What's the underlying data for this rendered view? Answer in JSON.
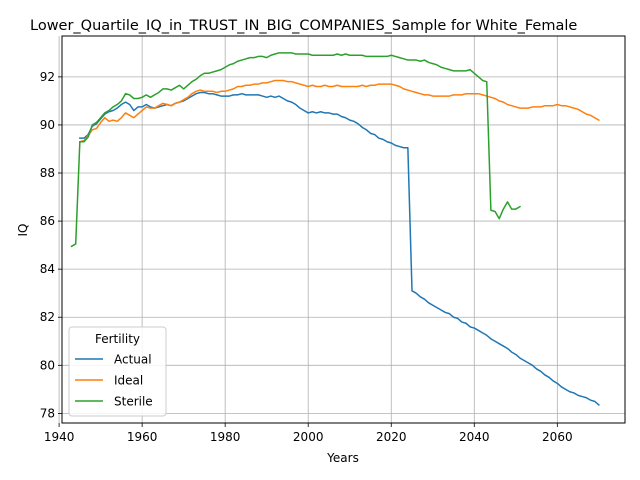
{
  "chart_data": {
    "type": "line",
    "title": "Lower_Quartile_IQ_in_TRUST_IN_BIG_COMPANIES_Sample for White_Female",
    "xlabel": "Years",
    "ylabel": "IQ",
    "xlim": [
      1940.7,
      2076.3
    ],
    "ylim": [
      77.6,
      93.7
    ],
    "xticks": [
      1940,
      1960,
      1980,
      2000,
      2020,
      2040,
      2060
    ],
    "yticks": [
      78,
      80,
      82,
      84,
      86,
      88,
      90,
      92
    ],
    "xtick_labels": [
      "1940",
      "1960",
      "1980",
      "2000",
      "2020",
      "2040",
      "2060"
    ],
    "ytick_labels": [
      "78",
      "80",
      "82",
      "84",
      "86",
      "88",
      "90",
      "92"
    ],
    "grid": true,
    "legend": {
      "title": "Fertility",
      "placement": "lower-left"
    },
    "series": [
      {
        "name": "Actual",
        "color": "#1f77b4",
        "x": [
          1945,
          1946,
          1947,
          1948,
          1949,
          1950,
          1951,
          1952,
          1953,
          1954,
          1955,
          1956,
          1957,
          1958,
          1959,
          1960,
          1961,
          1962,
          1963,
          1964,
          1965,
          1966,
          1967,
          1968,
          1969,
          1970,
          1971,
          1972,
          1973,
          1974,
          1975,
          1976,
          1977,
          1978,
          1979,
          1980,
          1981,
          1982,
          1983,
          1984,
          1985,
          1986,
          1987,
          1988,
          1989,
          1990,
          1991,
          1992,
          1993,
          1994,
          1995,
          1996,
          1997,
          1998,
          1999,
          2000,
          2001,
          2002,
          2003,
          2004,
          2005,
          2006,
          2007,
          2008,
          2009,
          2010,
          2011,
          2012,
          2013,
          2014,
          2015,
          2016,
          2017,
          2018,
          2019,
          2020,
          2021,
          2022,
          2023,
          2024,
          2025,
          2026,
          2027,
          2028,
          2029,
          2030,
          2031,
          2032,
          2033,
          2034,
          2035,
          2036,
          2037,
          2038,
          2039,
          2040,
          2041,
          2042,
          2043,
          2044,
          2045,
          2046,
          2047,
          2048,
          2049,
          2050,
          2051,
          2052,
          2053,
          2054,
          2055,
          2056,
          2057,
          2058,
          2059,
          2060,
          2061,
          2062,
          2063,
          2064,
          2065,
          2066,
          2067,
          2068,
          2069,
          2070
        ],
        "values": [
          89.45,
          89.45,
          89.6,
          89.95,
          90.05,
          90.25,
          90.45,
          90.55,
          90.6,
          90.7,
          90.85,
          90.95,
          90.85,
          90.6,
          90.75,
          90.75,
          90.85,
          90.75,
          90.7,
          90.75,
          90.8,
          90.85,
          90.8,
          90.9,
          90.95,
          91.0,
          91.1,
          91.2,
          91.3,
          91.35,
          91.35,
          91.3,
          91.3,
          91.25,
          91.2,
          91.2,
          91.2,
          91.25,
          91.25,
          91.3,
          91.25,
          91.25,
          91.25,
          91.25,
          91.2,
          91.15,
          91.2,
          91.15,
          91.2,
          91.1,
          91.0,
          90.95,
          90.85,
          90.7,
          90.6,
          90.5,
          90.55,
          90.5,
          90.55,
          90.5,
          90.5,
          90.45,
          90.45,
          90.35,
          90.3,
          90.2,
          90.15,
          90.05,
          89.9,
          89.8,
          89.65,
          89.6,
          89.45,
          89.4,
          89.3,
          89.25,
          89.15,
          89.1,
          89.05,
          89.05,
          83.1,
          83.0,
          82.85,
          82.75,
          82.6,
          82.5,
          82.4,
          82.3,
          82.2,
          82.15,
          82.0,
          81.95,
          81.8,
          81.75,
          81.6,
          81.55,
          81.45,
          81.35,
          81.25,
          81.1,
          81.0,
          80.9,
          80.8,
          80.7,
          80.55,
          80.45,
          80.3,
          80.2,
          80.1,
          80.0,
          79.85,
          79.75,
          79.6,
          79.5,
          79.35,
          79.25,
          79.1,
          79.0,
          78.9,
          78.85,
          78.75,
          78.7,
          78.65,
          78.55,
          78.5,
          78.35
        ]
      },
      {
        "name": "Ideal",
        "color": "#ff7f0e",
        "x": [
          1945,
          1946,
          1947,
          1948,
          1949,
          1950,
          1951,
          1952,
          1953,
          1954,
          1955,
          1956,
          1957,
          1958,
          1959,
          1960,
          1961,
          1962,
          1963,
          1964,
          1965,
          1966,
          1967,
          1968,
          1969,
          1970,
          1971,
          1972,
          1973,
          1974,
          1975,
          1976,
          1977,
          1978,
          1979,
          1980,
          1981,
          1982,
          1983,
          1984,
          1985,
          1986,
          1987,
          1988,
          1989,
          1990,
          1991,
          1992,
          1993,
          1994,
          1995,
          1996,
          1997,
          1998,
          1999,
          2000,
          2001,
          2002,
          2003,
          2004,
          2005,
          2006,
          2007,
          2008,
          2009,
          2010,
          2011,
          2012,
          2013,
          2014,
          2015,
          2016,
          2017,
          2018,
          2019,
          2020,
          2021,
          2022,
          2023,
          2024,
          2025,
          2026,
          2027,
          2028,
          2029,
          2030,
          2031,
          2032,
          2033,
          2034,
          2035,
          2036,
          2037,
          2038,
          2039,
          2040,
          2041,
          2042,
          2043,
          2044,
          2045,
          2046,
          2047,
          2048,
          2049,
          2050,
          2051,
          2052,
          2053,
          2054,
          2055,
          2056,
          2057,
          2058,
          2059,
          2060,
          2061,
          2062,
          2063,
          2064,
          2065,
          2066,
          2067,
          2068,
          2069,
          2070
        ],
        "values": [
          89.3,
          89.35,
          89.55,
          89.8,
          89.85,
          90.1,
          90.3,
          90.15,
          90.2,
          90.15,
          90.3,
          90.5,
          90.4,
          90.3,
          90.45,
          90.6,
          90.75,
          90.7,
          90.7,
          90.8,
          90.9,
          90.85,
          90.8,
          90.9,
          90.95,
          91.05,
          91.15,
          91.3,
          91.4,
          91.45,
          91.4,
          91.4,
          91.4,
          91.35,
          91.4,
          91.4,
          91.45,
          91.5,
          91.6,
          91.6,
          91.65,
          91.65,
          91.7,
          91.7,
          91.75,
          91.75,
          91.8,
          91.85,
          91.85,
          91.85,
          91.8,
          91.8,
          91.75,
          91.7,
          91.65,
          91.6,
          91.65,
          91.6,
          91.6,
          91.65,
          91.6,
          91.6,
          91.65,
          91.6,
          91.6,
          91.6,
          91.6,
          91.6,
          91.65,
          91.6,
          91.65,
          91.65,
          91.7,
          91.7,
          91.7,
          91.7,
          91.65,
          91.6,
          91.5,
          91.45,
          91.4,
          91.35,
          91.3,
          91.25,
          91.25,
          91.2,
          91.2,
          91.2,
          91.2,
          91.2,
          91.25,
          91.25,
          91.25,
          91.3,
          91.3,
          91.3,
          91.3,
          91.25,
          91.2,
          91.15,
          91.1,
          91.0,
          90.95,
          90.85,
          90.8,
          90.75,
          90.7,
          90.7,
          90.7,
          90.75,
          90.75,
          90.75,
          90.8,
          90.8,
          90.8,
          90.85,
          90.8,
          90.8,
          90.75,
          90.7,
          90.65,
          90.55,
          90.45,
          90.4,
          90.3,
          90.2
        ]
      },
      {
        "name": "Sterile",
        "color": "#2ca02c",
        "x": [
          1943,
          1944,
          1945,
          1946,
          1947,
          1948,
          1949,
          1950,
          1951,
          1952,
          1953,
          1954,
          1955,
          1956,
          1957,
          1958,
          1959,
          1960,
          1961,
          1962,
          1963,
          1964,
          1965,
          1966,
          1967,
          1968,
          1969,
          1970,
          1971,
          1972,
          1973,
          1974,
          1975,
          1976,
          1977,
          1978,
          1979,
          1980,
          1981,
          1982,
          1983,
          1984,
          1985,
          1986,
          1987,
          1988,
          1989,
          1990,
          1991,
          1992,
          1993,
          1994,
          1995,
          1996,
          1997,
          1998,
          1999,
          2000,
          2001,
          2002,
          2003,
          2004,
          2005,
          2006,
          2007,
          2008,
          2009,
          2010,
          2011,
          2012,
          2013,
          2014,
          2015,
          2016,
          2017,
          2018,
          2019,
          2020,
          2021,
          2022,
          2023,
          2024,
          2025,
          2026,
          2027,
          2028,
          2029,
          2030,
          2031,
          2032,
          2033,
          2034,
          2035,
          2036,
          2037,
          2038,
          2039,
          2040,
          2041,
          2042,
          2043,
          2044,
          2045,
          2046,
          2047,
          2048,
          2049,
          2050,
          2051
        ],
        "values": [
          84.95,
          85.05,
          89.3,
          89.3,
          89.5,
          90.0,
          90.1,
          90.3,
          90.5,
          90.6,
          90.75,
          90.85,
          91.0,
          91.3,
          91.25,
          91.1,
          91.1,
          91.15,
          91.25,
          91.15,
          91.25,
          91.35,
          91.5,
          91.5,
          91.45,
          91.55,
          91.65,
          91.5,
          91.65,
          91.8,
          91.9,
          92.05,
          92.15,
          92.15,
          92.2,
          92.25,
          92.3,
          92.4,
          92.5,
          92.55,
          92.65,
          92.7,
          92.75,
          92.8,
          92.8,
          92.85,
          92.85,
          92.8,
          92.9,
          92.95,
          93.0,
          93.0,
          93.0,
          93.0,
          92.95,
          92.95,
          92.95,
          92.95,
          92.9,
          92.9,
          92.9,
          92.9,
          92.9,
          92.9,
          92.95,
          92.9,
          92.95,
          92.9,
          92.9,
          92.9,
          92.9,
          92.85,
          92.85,
          92.85,
          92.85,
          92.85,
          92.85,
          92.9,
          92.85,
          92.8,
          92.75,
          92.7,
          92.7,
          92.7,
          92.65,
          92.7,
          92.6,
          92.55,
          92.5,
          92.4,
          92.35,
          92.3,
          92.25,
          92.25,
          92.25,
          92.25,
          92.3,
          92.15,
          92.0,
          91.85,
          91.8,
          86.45,
          86.4,
          86.1,
          86.5,
          86.8,
          86.5,
          86.5,
          86.6
        ]
      }
    ]
  }
}
